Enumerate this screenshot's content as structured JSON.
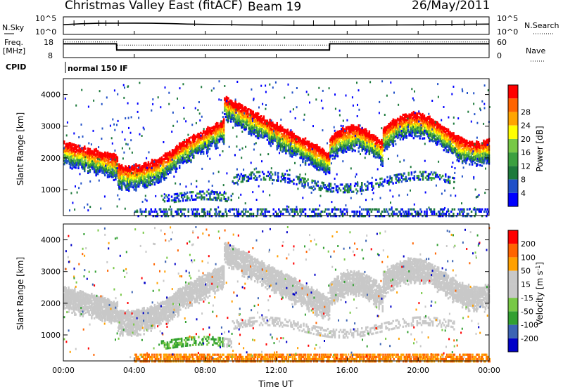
{
  "header": {
    "title": "Christmas Valley East (fitACF)",
    "beam": "Beam 19",
    "date": "26/May/2011"
  },
  "meta_panels": {
    "nsky_label": "N.Sky",
    "nsearch_label": "N.Search",
    "freq_label_line1": "Freq.",
    "freq_label_line2": "[MHz]",
    "nave_label": "Nave",
    "cpid_label": "CPID",
    "cpid_value": "normal 150 IF",
    "noise_ticks": [
      "10^5",
      "10^0"
    ],
    "freq_ticks": [
      "18",
      "8"
    ],
    "nave_ticks": [
      "60",
      "0"
    ]
  },
  "colors": {
    "power_scale": [
      "#0000ff",
      "#2050c8",
      "#1e7a3c",
      "#3ca040",
      "#78c846",
      "#ffff00",
      "#ffa500",
      "#ff6400",
      "#ff0000"
    ],
    "velocity_scale": [
      "#0000c8",
      "#3c64b4",
      "#32a032",
      "#78c846",
      "#c8c8c8",
      "#c8c8c8",
      "#ffa000",
      "#ff6400",
      "#ff0000"
    ]
  },
  "chart_data": [
    {
      "type": "line",
      "panel": "noise",
      "title": "",
      "x": [
        "00:00",
        "01:00",
        "02:00",
        "03:00",
        "04:00",
        "05:00",
        "06:00",
        "07:00",
        "08:00",
        "09:00",
        "10:00",
        "11:00",
        "12:00",
        "13:00",
        "14:00",
        "15:00",
        "16:00",
        "17:00",
        "18:00",
        "19:00",
        "20:00",
        "21:00",
        "22:00",
        "23:00",
        "24:00"
      ],
      "series": [
        {
          "name": "N.Sky",
          "values": [
            900,
            2000,
            3000,
            3200,
            3300,
            3000,
            2200,
            1500,
            1200,
            1000,
            800,
            700,
            650,
            600,
            600,
            580,
            600,
            650,
            700,
            750,
            800,
            900,
            1100,
            1300,
            1500
          ]
        }
      ],
      "ylim": [
        1,
        100000
      ],
      "yscale": "log"
    },
    {
      "type": "line",
      "panel": "frequency",
      "title": "",
      "x": [
        "00:00",
        "03:00",
        "03:01",
        "15:00",
        "15:01",
        "24:00"
      ],
      "series": [
        {
          "name": "Freq.",
          "values": [
            16,
            16,
            12,
            12,
            16,
            16
          ]
        },
        {
          "name": "Nave",
          "values": [
            55,
            55,
            43,
            43,
            55,
            55
          ]
        }
      ],
      "ylim": [
        8,
        18
      ]
    },
    {
      "type": "heatmap",
      "panel": "power",
      "xlabel": "",
      "ylabel": "Slant Range [km]",
      "colorbar_label": "Power [dB]",
      "colorbar_ticks": [
        4,
        8,
        12,
        16,
        20,
        24,
        28
      ],
      "x_ticks": [
        "00:00",
        "04:00",
        "08:00",
        "12:00",
        "16:00",
        "20:00",
        "00:00"
      ],
      "y_ticks": [
        1000,
        2000,
        3000,
        4000
      ],
      "ylim": [
        180,
        4500
      ],
      "xlim_hours": [
        0,
        24
      ]
    },
    {
      "type": "heatmap",
      "panel": "velocity",
      "xlabel": "Time UT",
      "ylabel": "Slant Range [km]",
      "colorbar_label": "Velocity [m s^-1]",
      "colorbar_ticks": [
        200,
        100,
        50,
        15,
        -15,
        -50,
        -100,
        -200
      ],
      "x_ticks": [
        "00:00",
        "04:00",
        "08:00",
        "12:00",
        "16:00",
        "20:00",
        "00:00"
      ],
      "y_ticks": [
        1000,
        2000,
        3000,
        4000
      ],
      "ylim": [
        180,
        4500
      ],
      "xlim_hours": [
        0,
        24
      ]
    }
  ]
}
